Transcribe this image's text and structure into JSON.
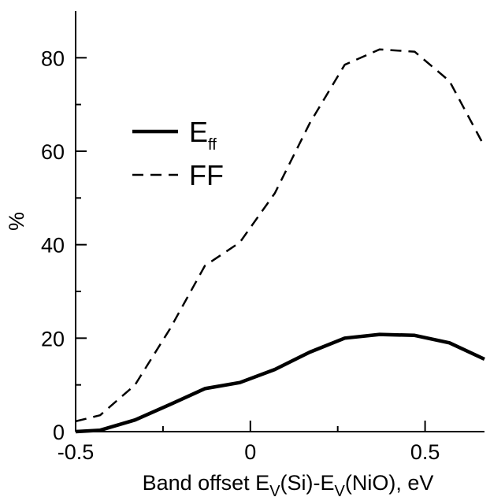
{
  "chart_data": {
    "type": "line",
    "title": "",
    "xlabel_parts": [
      "Band offset E",
      "V",
      "(Si)-E",
      "V",
      "(NiO), eV"
    ],
    "ylabel": "%",
    "xlim": [
      -0.5,
      0.67
    ],
    "ylim": [
      0,
      90
    ],
    "xticks": [
      -0.5,
      0,
      0.5
    ],
    "xtick_labels": [
      "-0.5",
      "0",
      "0.5"
    ],
    "yticks": [
      0,
      20,
      40,
      60,
      80
    ],
    "ytick_labels": [
      "0",
      "20",
      "40",
      "60",
      "80"
    ],
    "grid": false,
    "legend_position": "upper-left",
    "series": [
      {
        "name": "E",
        "name_sub": "ff",
        "style": "solid",
        "color": "#000000",
        "x": [
          -0.5,
          -0.43,
          -0.33,
          -0.23,
          -0.13,
          -0.03,
          0.07,
          0.17,
          0.27,
          0.37,
          0.47,
          0.57,
          0.67
        ],
        "y": [
          0.0,
          0.3,
          2.5,
          5.8,
          9.2,
          10.5,
          13.3,
          17.0,
          20.0,
          20.8,
          20.6,
          19.0,
          15.5
        ]
      },
      {
        "name": "FF",
        "style": "dashed",
        "color": "#000000",
        "x": [
          -0.5,
          -0.43,
          -0.33,
          -0.23,
          -0.13,
          -0.03,
          0.07,
          0.17,
          0.27,
          0.37,
          0.47,
          0.57,
          0.67
        ],
        "y": [
          2.2,
          3.5,
          10.0,
          22.0,
          35.5,
          40.5,
          51.0,
          66.0,
          78.5,
          81.8,
          81.3,
          75.0,
          61.0
        ]
      }
    ]
  }
}
